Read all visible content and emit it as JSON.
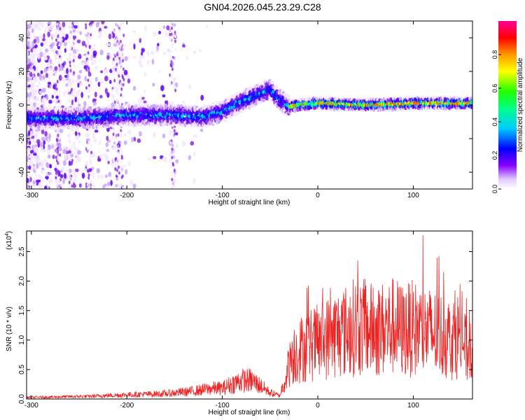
{
  "title": "GN04.2026.045.23.29.C28",
  "colors": {
    "snr_line": "#ee2222",
    "axis": "#000000"
  },
  "chart_data": [
    {
      "type": "heatmap",
      "title": "GN04.2026.045.23.29.C28",
      "xlabel": "Height of straight line (km)",
      "ylabel": "Frequency (Hz)",
      "xlim": [
        -305,
        162
      ],
      "ylim": [
        -50,
        50
      ],
      "xticks": [
        -300,
        -200,
        -100,
        0,
        100
      ],
      "yticks": [
        -40,
        -20,
        0,
        20,
        40
      ],
      "grid": false,
      "colorbar": {
        "label": "Normalized spectral amplitude",
        "range": [
          0,
          1
        ],
        "ticks": [
          "0.0",
          "0.2",
          "0.4",
          "0.6",
          "0.8"
        ],
        "colormap": [
          "#ffffff",
          "#8800ff",
          "#0000ff",
          "#00ffff",
          "#00ff00",
          "#ffff00",
          "#ff8800",
          "#ff0000",
          "#ff00aa"
        ]
      },
      "ridge": {
        "x": [
          -300,
          -250,
          -200,
          -150,
          -120,
          -100,
          -80,
          -60,
          -50,
          -40,
          -30,
          -20,
          0,
          50,
          100,
          150,
          160
        ],
        "y": [
          -8,
          -8,
          -6,
          -6,
          -7,
          -4,
          2,
          7,
          9,
          3,
          -1,
          0,
          1,
          0,
          1,
          1,
          1
        ]
      }
    },
    {
      "type": "line",
      "title": "",
      "xlabel": "Height of straight line (km)",
      "ylabel": "SNR (10 * v/v)",
      "ylabel_scale": "(x10",
      "ylabel_scale_exp": "4",
      "ylabel_scale_close": ")",
      "xlim": [
        -305,
        162
      ],
      "ylim": [
        0,
        2.85
      ],
      "xticks": [
        -300,
        -200,
        -100,
        0,
        100
      ],
      "yticks": [
        "0.0",
        "0.5",
        "1.0",
        "1.5",
        "2.0",
        "2.5"
      ],
      "grid": false,
      "series": [
        {
          "envelope_x": [
            -305,
            -240,
            -200,
            -160,
            -130,
            -110,
            -100,
            -90,
            -80,
            -70,
            -60,
            -50,
            -40,
            -32,
            -28,
            -20,
            -10,
            0,
            10,
            20,
            30,
            40,
            50,
            60,
            70,
            80,
            90,
            100,
            110,
            120,
            130,
            140,
            150,
            156,
            162
          ],
          "envelope_y": [
            0.03,
            0.05,
            0.08,
            0.1,
            0.15,
            0.2,
            0.2,
            0.28,
            0.35,
            0.35,
            0.25,
            0.12,
            0.06,
            0.5,
            0.9,
            1.0,
            1.1,
            1.15,
            1.25,
            1.35,
            1.4,
            1.5,
            1.45,
            1.4,
            1.45,
            1.5,
            1.4,
            1.45,
            1.4,
            1.35,
            1.3,
            1.25,
            1.35,
            0.95,
            1.2
          ]
        }
      ]
    }
  ]
}
